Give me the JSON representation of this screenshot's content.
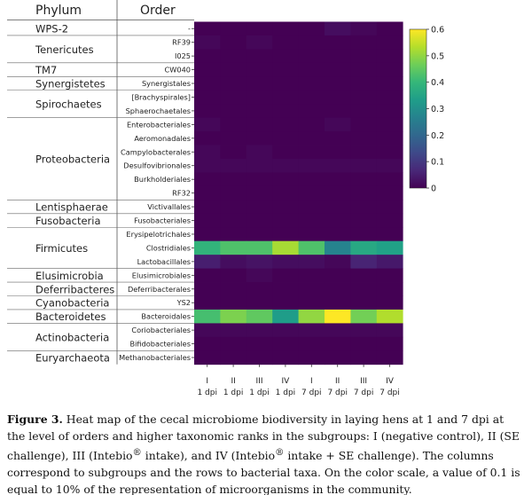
{
  "caption": {
    "label": "Figure 3.",
    "text_1": "Heat map of the cecal microbiome biodiversity in laying hens at 1 and 7 dpi at the level of orders and higher taxonomic ranks in the subgroups: I (negative control), II (SE challenge), III (Intebio",
    "registered": "®",
    "text_2": " intake), and IV (Intebio",
    "text_3": " intake + SE challenge). The columns correspond to subgroups and the rows to bacterial taxa. On the color scale, a value of 0.1 is equal to 10% of the representation of microorganisms in the community."
  },
  "chart_data": {
    "type": "heatmap",
    "phylum_header": "Phylum",
    "order_header": "Order",
    "colormap": [
      "#440154",
      "#482878",
      "#3e4989",
      "#31688e",
      "#26828e",
      "#1f9e89",
      "#35b779",
      "#6ece58",
      "#b5de2b",
      "#fde725"
    ],
    "colorbar_ticks": [
      "0",
      "0.1",
      "0.2",
      "0.3",
      "0.4",
      "0.5",
      "0.6"
    ],
    "vmin": 0,
    "vmax": 0.6,
    "columns": [
      {
        "subgroup": "I",
        "dpi": "1 dpi"
      },
      {
        "subgroup": "II",
        "dpi": "1 dpi"
      },
      {
        "subgroup": "III",
        "dpi": "1 dpi"
      },
      {
        "subgroup": "IV",
        "dpi": "1 dpi"
      },
      {
        "subgroup": "I",
        "dpi": "7 dpi"
      },
      {
        "subgroup": "II",
        "dpi": "7 dpi"
      },
      {
        "subgroup": "III",
        "dpi": "7 dpi"
      },
      {
        "subgroup": "IV",
        "dpi": "7 dpi"
      }
    ],
    "rows": [
      "-",
      "RF39",
      "I025",
      "CW040",
      "Synergistales",
      "[Brachyspirales]",
      "Sphaerochaetales",
      "Enterobacteriales",
      "Aeromonadales",
      "Campylobacterales",
      "Desulfovibrionales",
      "Burkholderiales",
      "RF32",
      "Victivallales",
      "Fusobacteriales",
      "Erysipelotrichales",
      "Clostridiales",
      "Lactobacillales",
      "Elusimicrobiales",
      "Deferribacterales",
      "YS2",
      "Bacteroidales",
      "Coriobacteriales",
      "Bifidobacteriales",
      "Methanobacteriales"
    ],
    "phyla": [
      {
        "name": "WPS-2",
        "rows": [
          0,
          0
        ]
      },
      {
        "name": "Tenericutes",
        "rows": [
          1,
          2
        ]
      },
      {
        "name": "TM7",
        "rows": [
          3,
          3
        ]
      },
      {
        "name": "Synergistetes",
        "rows": [
          4,
          4
        ]
      },
      {
        "name": "Spirochaetes",
        "rows": [
          5,
          6
        ]
      },
      {
        "name": "Proteobacteria",
        "rows": [
          7,
          12
        ]
      },
      {
        "name": "Lentisphaerae",
        "rows": [
          13,
          13
        ]
      },
      {
        "name": "Fusobacteria",
        "rows": [
          14,
          14
        ]
      },
      {
        "name": "Firmicutes",
        "rows": [
          15,
          17
        ]
      },
      {
        "name": "Elusimicrobia",
        "rows": [
          18,
          18
        ]
      },
      {
        "name": "Deferribacteres",
        "rows": [
          19,
          19
        ]
      },
      {
        "name": "Cyanobacteria",
        "rows": [
          20,
          20
        ]
      },
      {
        "name": "Bacteroidetes",
        "rows": [
          21,
          21
        ]
      },
      {
        "name": "Actinobacteria",
        "rows": [
          22,
          23
        ]
      },
      {
        "name": "Euryarchaeota",
        "rows": [
          24,
          24
        ]
      }
    ],
    "values": [
      [
        0.0,
        0.0,
        0.0,
        0.0,
        0.0,
        0.02,
        0.01,
        0.0
      ],
      [
        0.01,
        0.0,
        0.01,
        0.0,
        0.0,
        0.0,
        0.0,
        0.0
      ],
      [
        0.0,
        0.0,
        0.0,
        0.0,
        0.0,
        0.0,
        0.0,
        0.0
      ],
      [
        0.0,
        0.0,
        0.0,
        0.0,
        0.0,
        0.0,
        0.0,
        0.0
      ],
      [
        0.0,
        0.0,
        0.0,
        0.0,
        0.0,
        0.0,
        0.0,
        0.0
      ],
      [
        0.0,
        0.0,
        0.0,
        0.0,
        0.0,
        0.0,
        0.0,
        0.0
      ],
      [
        0.0,
        0.0,
        0.0,
        0.0,
        0.0,
        0.0,
        0.0,
        0.0
      ],
      [
        0.01,
        0.0,
        0.0,
        0.0,
        0.0,
        0.01,
        0.0,
        0.0
      ],
      [
        0.0,
        0.0,
        0.0,
        0.0,
        0.0,
        0.0,
        0.0,
        0.0
      ],
      [
        0.01,
        0.0,
        0.01,
        0.0,
        0.0,
        0.0,
        0.0,
        0.0
      ],
      [
        0.01,
        0.01,
        0.01,
        0.01,
        0.01,
        0.01,
        0.01,
        0.01
      ],
      [
        0.0,
        0.0,
        0.0,
        0.0,
        0.0,
        0.0,
        0.0,
        0.0
      ],
      [
        0.0,
        0.0,
        0.0,
        0.0,
        0.0,
        0.0,
        0.0,
        0.0
      ],
      [
        0.0,
        0.0,
        0.0,
        0.0,
        0.0,
        0.0,
        0.0,
        0.0
      ],
      [
        0.0,
        0.0,
        0.0,
        0.0,
        0.0,
        0.0,
        0.0,
        0.0
      ],
      [
        0.0,
        0.0,
        0.0,
        0.0,
        0.0,
        0.0,
        0.0,
        0.0
      ],
      [
        0.39,
        0.43,
        0.43,
        0.52,
        0.43,
        0.27,
        0.36,
        0.34
      ],
      [
        0.05,
        0.02,
        0.03,
        0.02,
        0.02,
        0.01,
        0.06,
        0.04
      ],
      [
        0.0,
        0.0,
        0.01,
        0.0,
        0.0,
        0.0,
        0.0,
        0.0
      ],
      [
        0.0,
        0.0,
        0.0,
        0.0,
        0.0,
        0.0,
        0.0,
        0.0
      ],
      [
        0.0,
        0.0,
        0.0,
        0.0,
        0.0,
        0.0,
        0.0,
        0.0
      ],
      [
        0.42,
        0.48,
        0.45,
        0.33,
        0.5,
        0.6,
        0.47,
        0.53
      ],
      [
        0.01,
        0.01,
        0.01,
        0.01,
        0.01,
        0.01,
        0.01,
        0.01
      ],
      [
        0.0,
        0.0,
        0.0,
        0.0,
        0.0,
        0.0,
        0.0,
        0.0
      ],
      [
        0.0,
        0.0,
        0.0,
        0.0,
        0.0,
        0.0,
        0.0,
        0.0
      ]
    ]
  }
}
